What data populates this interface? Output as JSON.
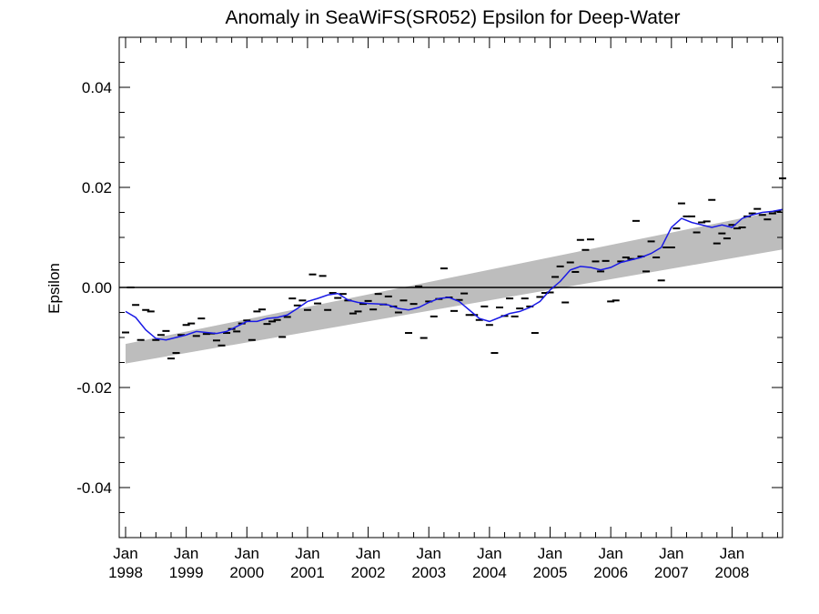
{
  "chart_data": {
    "type": "scatter",
    "title": "Anomaly in SeaWiFS(SR052) Epsilon for Deep-Water",
    "xlabel": "",
    "ylabel": "Epsilon",
    "xlim": [
      "1998-01",
      "2008-11"
    ],
    "ylim": [
      -0.05,
      0.05
    ],
    "grid": false,
    "x_ticks": [
      {
        "month": "Jan",
        "year": "1998"
      },
      {
        "month": "Jan",
        "year": "1999"
      },
      {
        "month": "Jan",
        "year": "2000"
      },
      {
        "month": "Jan",
        "year": "2001"
      },
      {
        "month": "Jan",
        "year": "2002"
      },
      {
        "month": "Jan",
        "year": "2003"
      },
      {
        "month": "Jan",
        "year": "2004"
      },
      {
        "month": "Jan",
        "year": "2005"
      },
      {
        "month": "Jan",
        "year": "2006"
      },
      {
        "month": "Jan",
        "year": "2007"
      },
      {
        "month": "Jan",
        "year": "2008"
      }
    ],
    "y_ticks": [
      "-0.04",
      "-0.02",
      "0.00",
      "0.02",
      "0.04"
    ],
    "y_tick_values": [
      -0.04,
      -0.02,
      0.0,
      0.02,
      0.04
    ],
    "zero_line": 0.0,
    "confidence_band": {
      "start": "1998-01",
      "end": "2008-11",
      "upper_start": -0.0113,
      "upper_end": 0.0155,
      "lower_start": -0.0152,
      "lower_end": 0.0076,
      "color": "#bdbdbd"
    },
    "series": [
      {
        "kind": "monthly-anomaly-markers",
        "color": "#000000",
        "x": [
          "1998-01",
          "1998-02",
          "1998-03",
          "1998-04",
          "1998-05",
          "1998-06",
          "1998-07",
          "1998-08",
          "1998-09",
          "1998-10",
          "1998-11",
          "1998-12",
          "1999-01",
          "1999-02",
          "1999-03",
          "1999-04",
          "1999-05",
          "1999-06",
          "1999-07",
          "1999-08",
          "1999-09",
          "1999-10",
          "1999-11",
          "1999-12",
          "2000-01",
          "2000-02",
          "2000-03",
          "2000-04",
          "2000-05",
          "2000-06",
          "2000-07",
          "2000-08",
          "2000-09",
          "2000-10",
          "2000-11",
          "2000-12",
          "2001-01",
          "2001-02",
          "2001-03",
          "2001-04",
          "2001-05",
          "2001-06",
          "2001-07",
          "2001-08",
          "2001-09",
          "2001-10",
          "2001-11",
          "2001-12",
          "2002-01",
          "2002-02",
          "2002-03",
          "2002-04",
          "2002-05",
          "2002-06",
          "2002-07",
          "2002-08",
          "2002-09",
          "2002-10",
          "2002-11",
          "2002-12",
          "2003-01",
          "2003-02",
          "2003-03",
          "2003-04",
          "2003-05",
          "2003-06",
          "2003-07",
          "2003-08",
          "2003-09",
          "2003-10",
          "2003-11",
          "2003-12",
          "2004-01",
          "2004-02",
          "2004-03",
          "2004-04",
          "2004-05",
          "2004-06",
          "2004-07",
          "2004-08",
          "2004-09",
          "2004-10",
          "2004-11",
          "2004-12",
          "2005-01",
          "2005-02",
          "2005-03",
          "2005-04",
          "2005-05",
          "2005-06",
          "2005-07",
          "2005-08",
          "2005-09",
          "2005-10",
          "2005-11",
          "2005-12",
          "2006-01",
          "2006-02",
          "2006-03",
          "2006-04",
          "2006-05",
          "2006-06",
          "2006-07",
          "2006-08",
          "2006-09",
          "2006-10",
          "2006-11",
          "2006-12",
          "2007-01",
          "2007-02",
          "2007-03",
          "2007-04",
          "2007-05",
          "2007-06",
          "2007-07",
          "2007-08",
          "2007-09",
          "2007-10",
          "2007-11",
          "2007-12",
          "2008-01",
          "2008-02",
          "2008-03",
          "2008-04",
          "2008-05",
          "2008-06",
          "2008-07",
          "2008-08",
          "2008-09",
          "2008-10",
          "2008-11"
        ],
        "y": [
          -0.009,
          0.0,
          -0.0035,
          -0.0105,
          -0.0045,
          -0.0048,
          -0.0105,
          -0.0095,
          -0.0087,
          -0.0142,
          -0.0131,
          -0.0095,
          -0.0075,
          -0.0072,
          -0.0097,
          -0.0062,
          -0.0093,
          -0.0092,
          -0.0106,
          -0.0116,
          -0.0091,
          -0.0083,
          -0.0088,
          -0.0072,
          -0.0066,
          -0.0105,
          -0.0048,
          -0.0044,
          -0.0073,
          -0.0068,
          -0.0065,
          -0.0099,
          -0.0059,
          -0.0022,
          -0.0036,
          -0.0026,
          -0.0045,
          0.0026,
          -0.0032,
          0.0023,
          -0.0045,
          -0.0011,
          -0.0021,
          -0.0013,
          -0.0026,
          -0.0052,
          -0.0048,
          -0.0033,
          -0.0027,
          -0.0044,
          -0.0013,
          -0.0034,
          -0.0018,
          -0.0038,
          -0.005,
          -0.0026,
          -0.0091,
          -0.0033,
          0.0002,
          -0.0101,
          -0.0028,
          -0.0058,
          -0.0023,
          0.0038,
          -0.002,
          -0.0047,
          -0.0025,
          -0.0012,
          -0.0055,
          -0.0055,
          -0.0065,
          -0.0038,
          -0.0075,
          -0.0131,
          -0.004,
          -0.0057,
          -0.0022,
          -0.0058,
          -0.0042,
          -0.0022,
          -0.0038,
          -0.0091,
          -0.0019,
          -0.0011,
          -0.001,
          0.0021,
          0.0042,
          -0.003,
          0.005,
          0.0031,
          0.0095,
          0.0075,
          0.0096,
          0.0052,
          0.0032,
          0.0053,
          -0.0028,
          -0.0026,
          0.0052,
          0.006,
          0.0057,
          0.0133,
          0.0062,
          0.0032,
          0.0092,
          0.006,
          0.0014,
          0.008,
          0.008,
          0.0118,
          0.0168,
          0.0142,
          0.0142,
          0.011,
          0.013,
          0.0132,
          0.0175,
          0.0088,
          0.0108,
          0.0098,
          0.0125,
          0.0118,
          0.012,
          0.0142,
          0.0148,
          0.0157,
          0.0145,
          0.0136,
          0.0148,
          0.0152,
          0.0218
        ]
      },
      {
        "kind": "running-mean",
        "color": "#1a1ae6",
        "x": [
          "1998-01",
          "1998-03",
          "1998-05",
          "1998-07",
          "1998-09",
          "1998-11",
          "1999-01",
          "1999-03",
          "1999-05",
          "1999-07",
          "1999-09",
          "1999-11",
          "2000-01",
          "2000-03",
          "2000-05",
          "2000-07",
          "2000-09",
          "2000-11",
          "2001-01",
          "2001-03",
          "2001-05",
          "2001-07",
          "2001-09",
          "2001-11",
          "2002-01",
          "2002-03",
          "2002-05",
          "2002-07",
          "2002-09",
          "2002-11",
          "2003-01",
          "2003-03",
          "2003-05",
          "2003-07",
          "2003-09",
          "2003-11",
          "2004-01",
          "2004-03",
          "2004-05",
          "2004-07",
          "2004-09",
          "2004-11",
          "2005-01",
          "2005-03",
          "2005-05",
          "2005-07",
          "2005-09",
          "2005-11",
          "2006-01",
          "2006-03",
          "2006-05",
          "2006-07",
          "2006-09",
          "2006-11",
          "2007-01",
          "2007-03",
          "2007-05",
          "2007-07",
          "2007-09",
          "2007-11",
          "2008-01",
          "2008-03",
          "2008-05",
          "2008-07",
          "2008-09",
          "2008-11"
        ],
        "y": [
          -0.0048,
          -0.006,
          -0.0085,
          -0.0102,
          -0.0105,
          -0.01,
          -0.0095,
          -0.0088,
          -0.009,
          -0.0092,
          -0.0088,
          -0.0078,
          -0.0068,
          -0.0068,
          -0.0062,
          -0.006,
          -0.0055,
          -0.0042,
          -0.0028,
          -0.0022,
          -0.0015,
          -0.0012,
          -0.0025,
          -0.003,
          -0.0032,
          -0.0033,
          -0.0035,
          -0.0042,
          -0.0045,
          -0.004,
          -0.003,
          -0.0022,
          -0.002,
          -0.0028,
          -0.0045,
          -0.0062,
          -0.0068,
          -0.006,
          -0.0052,
          -0.0048,
          -0.004,
          -0.0028,
          -0.0005,
          0.0012,
          0.0035,
          0.0042,
          0.004,
          0.0035,
          0.004,
          0.005,
          0.0055,
          0.006,
          0.0068,
          0.008,
          0.012,
          0.0138,
          0.013,
          0.0125,
          0.012,
          0.0125,
          0.012,
          0.0138,
          0.0145,
          0.015,
          0.0152,
          0.0156
        ]
      }
    ]
  }
}
